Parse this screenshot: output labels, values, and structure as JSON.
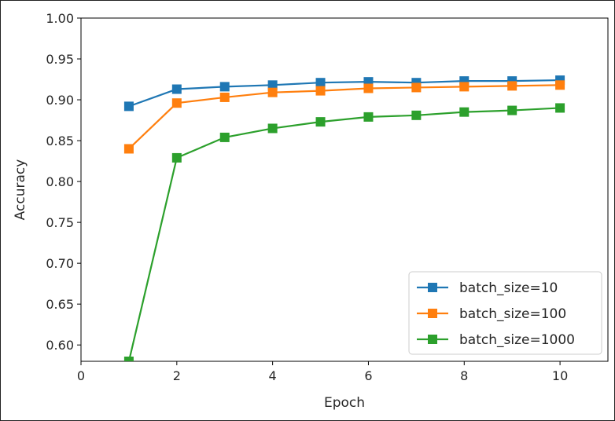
{
  "chart_data": {
    "type": "line",
    "title": "",
    "xlabel": "Epoch",
    "ylabel": "Accuracy",
    "xlim": [
      0,
      11
    ],
    "ylim": [
      0.58,
      1.0
    ],
    "xticks": [
      0,
      2,
      4,
      6,
      8,
      10
    ],
    "yticks": [
      0.6,
      0.65,
      0.7,
      0.75,
      0.8,
      0.85,
      0.9,
      0.95,
      1.0
    ],
    "xtick_labels": [
      "0",
      "2",
      "4",
      "6",
      "8",
      "10"
    ],
    "ytick_labels": [
      "0.60",
      "0.65",
      "0.70",
      "0.75",
      "0.80",
      "0.85",
      "0.90",
      "0.95",
      "1.00"
    ],
    "x": [
      1,
      2,
      3,
      4,
      5,
      6,
      7,
      8,
      9,
      10
    ],
    "series": [
      {
        "name": "batch_size=10",
        "color": "#1f77b4",
        "marker": "square",
        "values": [
          0.892,
          0.913,
          0.916,
          0.918,
          0.921,
          0.922,
          0.921,
          0.923,
          0.923,
          0.924
        ]
      },
      {
        "name": "batch_size=100",
        "color": "#ff7f0e",
        "marker": "square",
        "values": [
          0.84,
          0.896,
          0.903,
          0.909,
          0.911,
          0.914,
          0.915,
          0.916,
          0.917,
          0.918
        ]
      },
      {
        "name": "batch_size=1000",
        "color": "#2ca02c",
        "marker": "square",
        "values": [
          0.58,
          0.829,
          0.854,
          0.865,
          0.873,
          0.879,
          0.881,
          0.885,
          0.887,
          0.89
        ]
      }
    ],
    "legend": "lower-right",
    "grid": false
  }
}
